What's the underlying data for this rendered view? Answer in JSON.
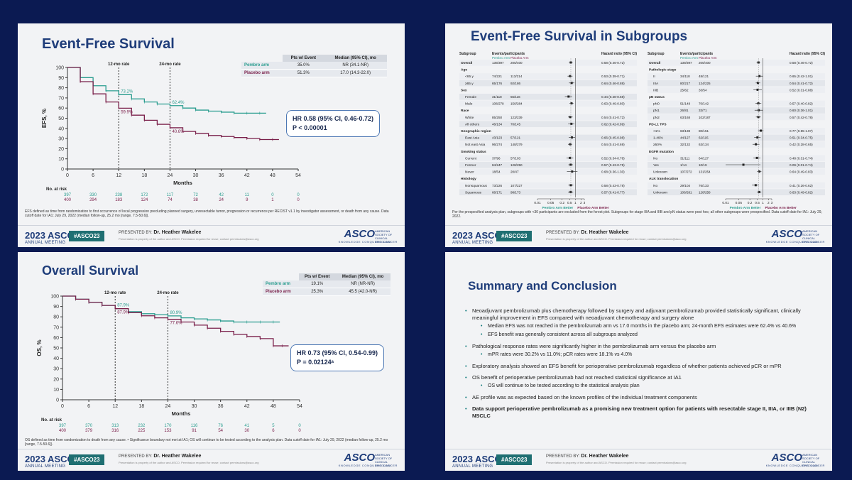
{
  "event": {
    "year": "2023 ASCO",
    "meeting": "ANNUAL MEETING",
    "hashtag": "#ASCO23",
    "presented_by": "PRESENTED BY:",
    "presenter": "Dr. Heather Wakelee",
    "property_note": "Presentation is property of the author and ASCO. Permission required for reuse; contact permissions@asco.org",
    "asco": "ASCO",
    "asco_tag": "AMERICAN SOCIETY OF CLINICAL ONCOLOGY",
    "asco_slogan": "KNOWLEDGE CONQUERS CANCER"
  },
  "colors": {
    "pembro": "#2a9d8f",
    "placebo": "#7a1f4a",
    "title": "#1f3d7a",
    "bg": "#0b1a52"
  },
  "efs": {
    "title": "Event-Free Survival",
    "ylabel": "EFS, %",
    "xlabel": "Months",
    "label_12": "12-mo rate",
    "label_24": "24-mo rate",
    "rate_pembro_12": "73.2%",
    "rate_placebo_12": "59.9%",
    "rate_pembro_24": "62.4%",
    "rate_placebo_24": "40.6%",
    "table": {
      "h1": "Pts w/ Event",
      "h2": "Median (95% CI), mo",
      "rows": [
        [
          "Pembro arm",
          "35.0%",
          "NR (34.1-NR)"
        ],
        [
          "Placebo arm",
          "51.3%",
          "17.0 (14.3-22.0)"
        ]
      ]
    },
    "hr_line1": "HR 0.58 (95% CI, 0.46-0.72)",
    "hr_line2": "P < 0.00001",
    "risk_label": "No. at risk",
    "risk_pembro": [
      "397",
      "330",
      "238",
      "172",
      "117",
      "72",
      "42",
      "11",
      "0",
      "0"
    ],
    "risk_placebo": [
      "400",
      "294",
      "183",
      "124",
      "74",
      "38",
      "24",
      "9",
      "1",
      "0"
    ],
    "footnote": "EFS defined as time from randomization to first occurrence of local progression precluding planned surgery, unresectable tumor, progression or recurrence per RECIST v1.1 by investigator assessment, or death from any cause. Data cutoff date for IA1: July 29, 2022 (median follow-up, 25.2 mo [range, 7.5-50.6])."
  },
  "forest": {
    "title": "Event-Free Survival in Subgroups",
    "col_subgroup": "Subgroup",
    "col_events": "Events/participants",
    "col_pembro": "Pembro Arm",
    "col_placebo": "Placebo Arm",
    "col_hr": "Hazard ratio (95% CI)",
    "left": [
      {
        "label": "Overall",
        "p": "139/397",
        "q": "205/400",
        "hr": "0.58 (0.46-0.72)",
        "est": 0.58,
        "lo": 0.46,
        "hi": 0.72,
        "h": true
      },
      {
        "label": "Age",
        "head": true
      },
      {
        "label": "<65 y",
        "p": "74/221",
        "q": "113/214",
        "hr": "0.53 (0.39-0.71)",
        "est": 0.53,
        "lo": 0.39,
        "hi": 0.71
      },
      {
        "label": "≥65 y",
        "p": "65/176",
        "q": "92/186",
        "hr": "0.64 (0.46-0.88)",
        "est": 0.64,
        "lo": 0.46,
        "hi": 0.88
      },
      {
        "label": "Sex",
        "head": true
      },
      {
        "label": "Female",
        "p": "31/118",
        "q": "55/116",
        "hr": "0.44 (0.28-0.68)",
        "est": 0.44,
        "lo": 0.28,
        "hi": 0.68
      },
      {
        "label": "Male",
        "p": "108/279",
        "q": "150/284",
        "hr": "0.63 (0.49-0.80)",
        "est": 0.63,
        "lo": 0.49,
        "hi": 0.8
      },
      {
        "label": "Race",
        "head": true
      },
      {
        "label": "White",
        "p": "85/250",
        "q": "123/239",
        "hr": "0.54 (0.41-0.72)",
        "est": 0.54,
        "lo": 0.41,
        "hi": 0.72
      },
      {
        "label": "All others",
        "p": "46/134",
        "q": "70/145",
        "hr": "0.62 (0.42-0.89)",
        "est": 0.62,
        "lo": 0.42,
        "hi": 0.89
      },
      {
        "label": "Geographic region",
        "head": true
      },
      {
        "label": "East Asia",
        "p": "43/123",
        "q": "57/121",
        "hr": "0.66 (0.45-0.98)",
        "est": 0.66,
        "lo": 0.45,
        "hi": 0.98
      },
      {
        "label": "Not east Asia",
        "p": "96/274",
        "q": "148/279",
        "hr": "0.54 (0.41-0.69)",
        "est": 0.54,
        "lo": 0.41,
        "hi": 0.69
      },
      {
        "label": "Smoking status",
        "head": true
      },
      {
        "label": "Current",
        "p": "37/96",
        "q": "57/103",
        "hr": "0.52 (0.34-0.78)",
        "est": 0.52,
        "lo": 0.34,
        "hi": 0.78
      },
      {
        "label": "Former",
        "p": "84/247",
        "q": "128/250",
        "hr": "0.57 (0.43-0.75)",
        "est": 0.57,
        "lo": 0.43,
        "hi": 0.75
      },
      {
        "label": "Never",
        "p": "18/54",
        "q": "20/47",
        "hr": "0.68 (0.36-1.30)",
        "est": 0.68,
        "lo": 0.36,
        "hi": 1.3
      },
      {
        "label": "Histology",
        "head": true
      },
      {
        "label": "Nonsquamous",
        "p": "73/226",
        "q": "107/227",
        "hr": "0.58 (0.43-0.78)",
        "est": 0.58,
        "lo": 0.43,
        "hi": 0.78
      },
      {
        "label": "Squamous",
        "p": "66/171",
        "q": "98/173",
        "hr": "0.57 (0.41-0.77)",
        "est": 0.57,
        "lo": 0.41,
        "hi": 0.77
      }
    ],
    "right": [
      {
        "label": "Overall",
        "p": "139/397",
        "q": "205/400",
        "hr": "0.58 (0.46-0.72)",
        "est": 0.58,
        "lo": 0.46,
        "hi": 0.72,
        "h": true
      },
      {
        "label": "Pathologic stage",
        "head": true
      },
      {
        "label": "II",
        "p": "34/118",
        "q": "48/121",
        "hr": "0.65 (0.42-1.01)",
        "est": 0.65,
        "lo": 0.42,
        "hi": 1.01
      },
      {
        "label": "IIIA",
        "p": "80/217",
        "q": "124/225",
        "hr": "0.54 (0.41-0.72)",
        "est": 0.54,
        "lo": 0.41,
        "hi": 0.72
      },
      {
        "label": "IIIB",
        "p": "25/62",
        "q": "33/54",
        "hr": "0.52 (0.31-0.88)",
        "est": 0.52,
        "lo": 0.31,
        "hi": 0.88
      },
      {
        "label": "pN status",
        "head": true
      },
      {
        "label": "pN0",
        "p": "51/148",
        "q": "70/142",
        "hr": "0.57 (0.40-0.82)",
        "est": 0.57,
        "lo": 0.4,
        "hi": 0.82
      },
      {
        "label": "pN1",
        "p": "26/81",
        "q": "33/71",
        "hr": "0.60 (0.36-1.01)",
        "est": 0.6,
        "lo": 0.36,
        "hi": 1.01
      },
      {
        "label": "pN2",
        "p": "63/168",
        "q": "102/187",
        "hr": "0.57 (0.42-0.78)",
        "est": 0.57,
        "lo": 0.42,
        "hi": 0.78
      },
      {
        "label": "PD-L1 TPS",
        "head": true
      },
      {
        "label": "<1%",
        "p": "63/138",
        "q": "80/151",
        "hr": "0.77 (0.55-1.07)",
        "est": 0.77,
        "lo": 0.55,
        "hi": 1.07
      },
      {
        "label": "1-49%",
        "p": "44/127",
        "q": "62/115",
        "hr": "0.51 (0.34-0.75)",
        "est": 0.51,
        "lo": 0.34,
        "hi": 0.75
      },
      {
        "label": "≥50%",
        "p": "32/132",
        "q": "63/134",
        "hr": "0.42 (0.28-0.65)",
        "est": 0.42,
        "lo": 0.28,
        "hi": 0.65
      },
      {
        "label": "EGFR mutation",
        "head": true
      },
      {
        "label": "No",
        "p": "31/111",
        "q": "64/127",
        "hr": "0.48 (0.31-0.74)",
        "est": 0.48,
        "lo": 0.31,
        "hi": 0.74
      },
      {
        "label": "Yes",
        "p": "1/14",
        "q": "10/19",
        "hr": "0.09 (0.01-0.74)",
        "est": 0.09,
        "lo": 0.01,
        "hi": 0.74
      },
      {
        "label": "Unknown",
        "p": "107/272",
        "q": "131/254",
        "hr": "0.64 (0.49-0.83)",
        "est": 0.64,
        "lo": 0.49,
        "hi": 0.83
      },
      {
        "label": "ALK translocation",
        "head": true
      },
      {
        "label": "No",
        "p": "29/104",
        "q": "76/133",
        "hr": "0.41 (0.26-0.62)",
        "est": 0.41,
        "lo": 0.26,
        "hi": 0.62
      },
      {
        "label": "Unknown",
        "p": "106/281",
        "q": "128/258",
        "hr": "0.63 (0.49-0.82)",
        "est": 0.63,
        "lo": 0.49,
        "hi": 0.82
      }
    ],
    "ticks": [
      "0.01",
      "0.05",
      "0.2",
      "0.5",
      "1",
      "2",
      "3"
    ],
    "better_pembro": "Pembro Arm Better",
    "better_placebo": "Placebo Arm Better",
    "footnote": "Per the prespecified analysis plan, subgroups with <30 participants are excluded from the forest plot. Subgroups for stage IIIA and IIIB and pN status were post hoc; all other subgroups were prespecified. Data cutoff date for IA1: July 29, 2022."
  },
  "os": {
    "title": "Overall Survival",
    "ylabel": "OS, %",
    "xlabel": "Months",
    "label_12": "12-mo rate",
    "label_24": "24-mo rate",
    "rate_pembro_12": "87.9%",
    "rate_placebo_12": "87.9%",
    "rate_pembro_24": "80.9%",
    "rate_placebo_24": "77.6%",
    "table": {
      "h1": "Pts w/ Event",
      "h2": "Median (95% CI), mo",
      "rows": [
        [
          "Pembro arm",
          "19.1%",
          "NR (NR-NR)"
        ],
        [
          "Placebo arm",
          "25.3%",
          "45.5 (42.0-NR)"
        ]
      ]
    },
    "hr_line1": "HR 0.73 (95% CI, 0.54-0.99)",
    "hr_line2": "P = 0.02124ᵃ",
    "risk_label": "No. at risk",
    "risk_pembro": [
      "397",
      "370",
      "313",
      "232",
      "170",
      "116",
      "76",
      "41",
      "5",
      "0"
    ],
    "risk_placebo": [
      "400",
      "379",
      "316",
      "225",
      "153",
      "91",
      "54",
      "30",
      "6",
      "0"
    ],
    "footnote": "OS defined as time from randomization to death from any cause. ᵃ Significance boundary not met at IA1; OS will continue to be tested according to the analysis plan. Data cutoff date for IA1: July 29, 2022 (median follow-up, 25.2 mo [range, 7.5-50.6])."
  },
  "summary": {
    "title": "Summary and Conclusion",
    "bullets": [
      {
        "text": "Neoadjuvant pembrolizumab plus chemotherapy followed by surgery and adjuvant pembrolizumab provided statistically significant, clinically meaningful improvement in EFS compared with neoadjuvant chemotherapy and surgery alone",
        "subs": [
          "Median EFS was not reached in the pembrolizumab arm vs 17.0 months in the placebo arm; 24-month EFS estimates were 62.4% vs 40.6%",
          "EFS benefit was generally consistent across all subgroups analyzed"
        ]
      },
      {
        "text": "Pathological response rates were significantly higher in the pembrolizumab arm versus the placebo arm",
        "subs": [
          "mPR rates were 30.2% vs 11.0%; pCR rates were 18.1% vs 4.0%"
        ]
      },
      {
        "text": "Exploratory analysis showed an EFS benefit for perioperative pembrolizumab regardless of whether patients achieved pCR or mPR",
        "subs": []
      },
      {
        "text": "OS benefit of perioperative pembrolizumab had not reached statistical significance at IA1",
        "subs": [
          "OS will continue to be tested according to the statistical analysis plan"
        ]
      },
      {
        "text": "AE profile was as expected based on the known profiles of the individual treatment components",
        "subs": []
      },
      {
        "text": "Data support perioperative pembrolizumab as a promising new treatment option for patients with resectable stage II, IIIA, or IIIB (N2) NSCLC",
        "subs": [],
        "bold": true
      }
    ]
  },
  "chart_data": [
    {
      "type": "line",
      "title": "Event-Free Survival",
      "xlabel": "Months",
      "ylabel": "EFS, %",
      "xlim": [
        0,
        54
      ],
      "ylim": [
        0,
        100
      ],
      "x_ticks": [
        0,
        6,
        12,
        18,
        24,
        30,
        36,
        42,
        48,
        54
      ],
      "y_ticks": [
        0,
        10,
        20,
        30,
        40,
        50,
        60,
        70,
        80,
        90,
        100
      ],
      "series": [
        {
          "name": "Pembro arm",
          "x": [
            0,
            3,
            6,
            9,
            12,
            15,
            18,
            21,
            24,
            27,
            30,
            33,
            36,
            39,
            42,
            45
          ],
          "y": [
            100,
            90,
            82,
            77,
            73.2,
            69,
            66,
            64,
            62.4,
            60,
            58,
            57,
            56,
            55,
            55,
            55
          ]
        },
        {
          "name": "Placebo arm",
          "x": [
            0,
            3,
            6,
            9,
            12,
            15,
            18,
            21,
            24,
            27,
            30,
            33,
            36,
            39,
            42,
            45,
            48
          ],
          "y": [
            100,
            86,
            74,
            66,
            59.9,
            53,
            48,
            44,
            40.6,
            37,
            35,
            33,
            32,
            31,
            30,
            29,
            29
          ]
        }
      ]
    },
    {
      "type": "line",
      "title": "Overall Survival",
      "xlabel": "Months",
      "ylabel": "OS, %",
      "xlim": [
        0,
        54
      ],
      "ylim": [
        0,
        100
      ],
      "x_ticks": [
        0,
        6,
        12,
        18,
        24,
        30,
        36,
        42,
        48,
        54
      ],
      "y_ticks": [
        0,
        10,
        20,
        30,
        40,
        50,
        60,
        70,
        80,
        90,
        100
      ],
      "series": [
        {
          "name": "Pembro arm",
          "x": [
            0,
            3,
            6,
            9,
            12,
            15,
            18,
            21,
            24,
            27,
            30,
            33,
            36,
            39,
            42,
            45,
            48
          ],
          "y": [
            100,
            97,
            94,
            91,
            87.9,
            85,
            83,
            82,
            80.9,
            79,
            78,
            77,
            76,
            75,
            75,
            75,
            75
          ]
        },
        {
          "name": "Placebo arm",
          "x": [
            0,
            3,
            6,
            9,
            12,
            15,
            18,
            21,
            24,
            27,
            30,
            33,
            36,
            39,
            42,
            45,
            48,
            50
          ],
          "y": [
            100,
            97,
            94,
            91,
            87.9,
            84,
            81,
            79,
            77.6,
            75,
            72,
            69,
            66,
            63,
            61,
            59,
            52,
            52
          ]
        }
      ]
    }
  ]
}
